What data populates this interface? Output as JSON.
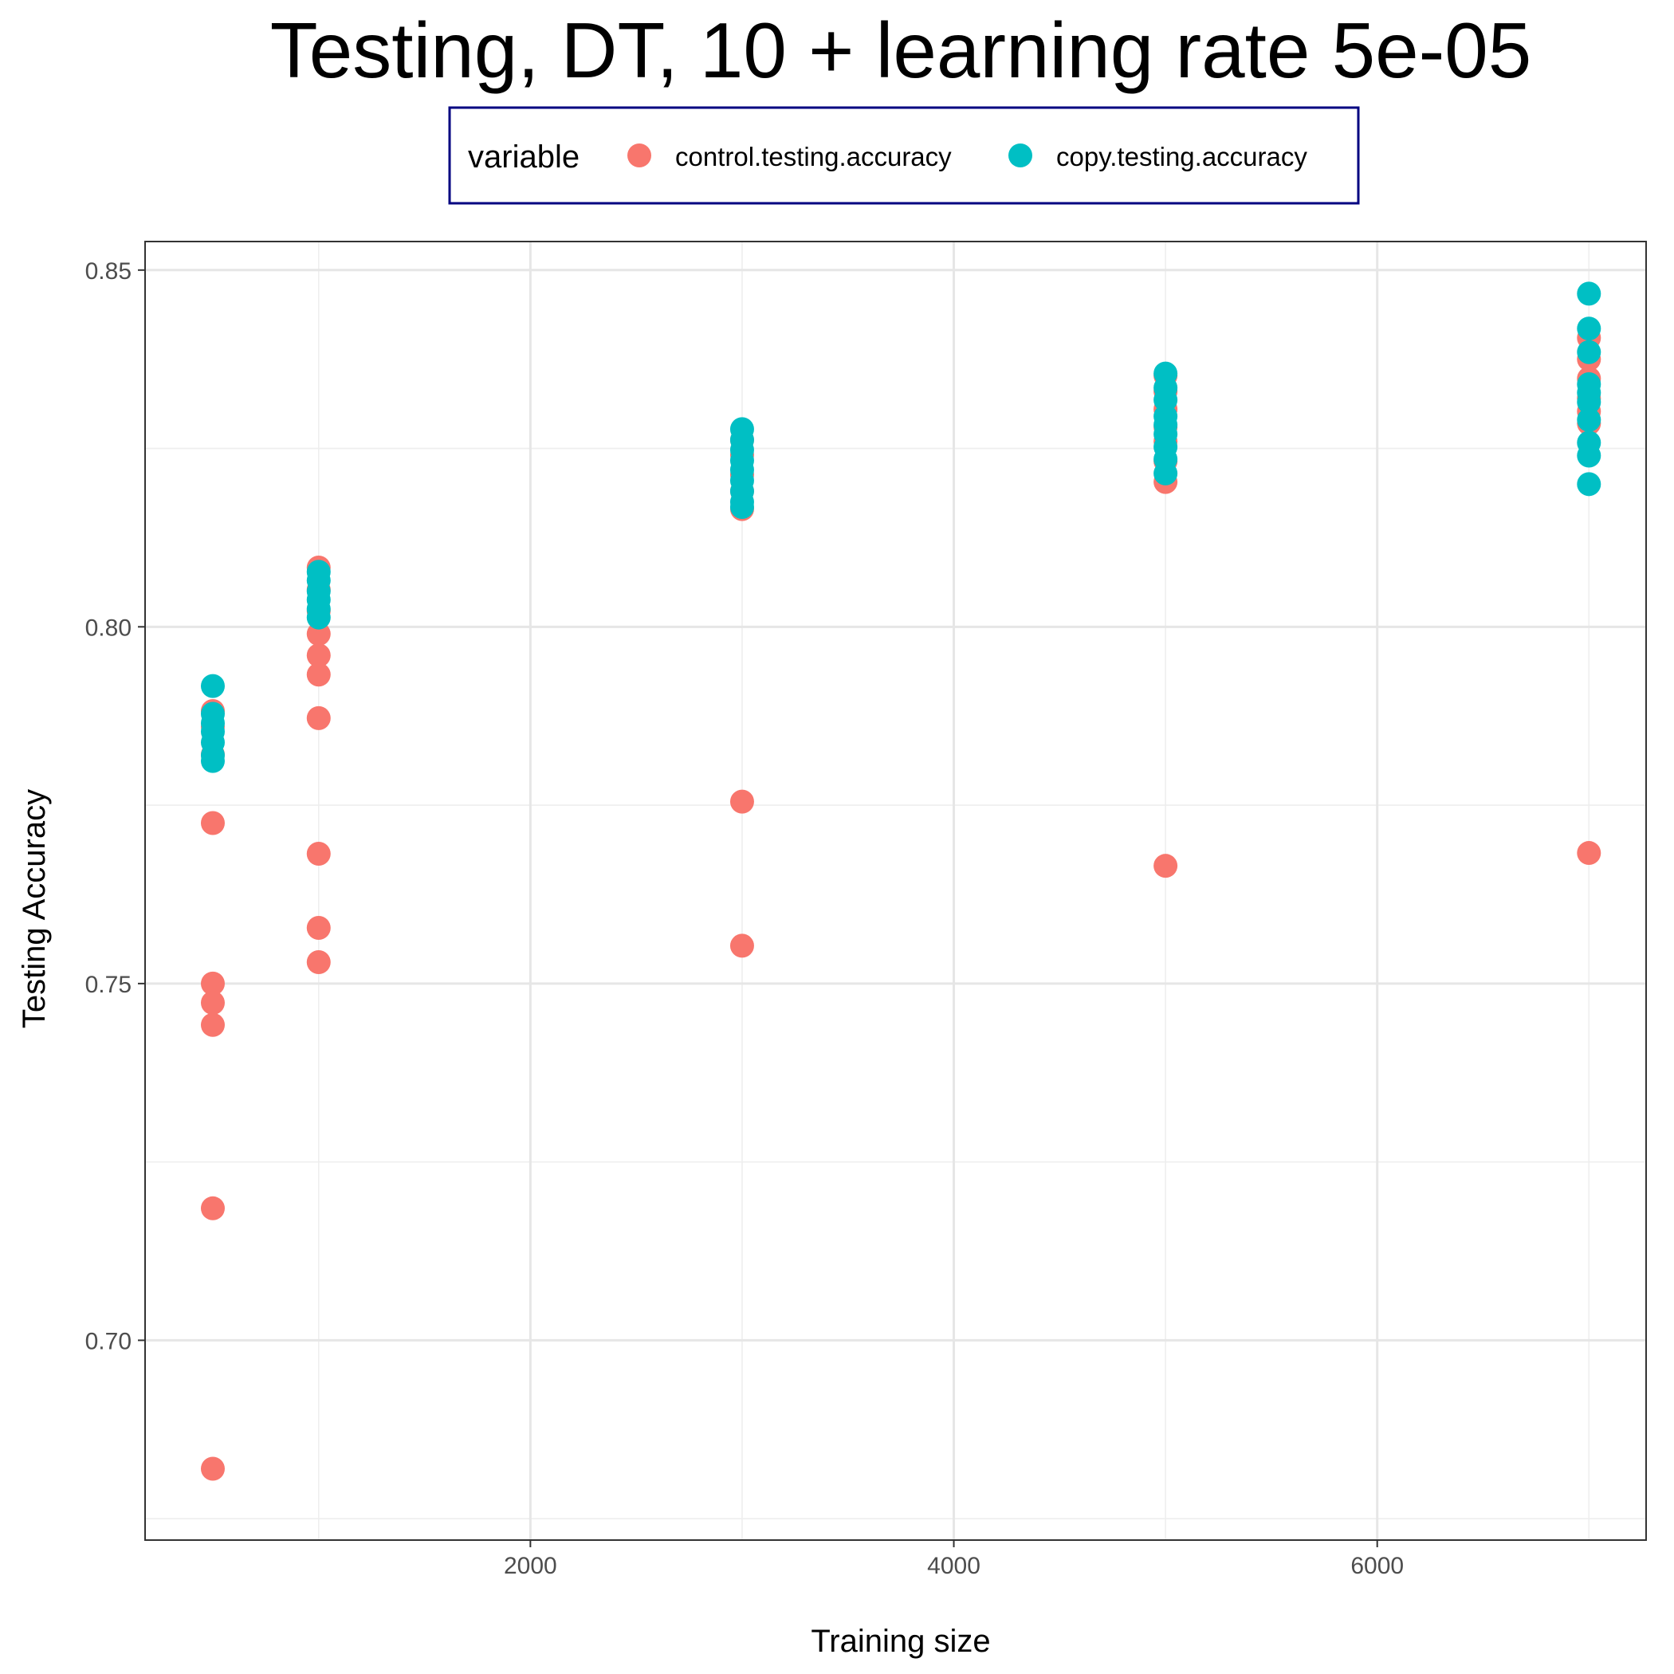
{
  "chart_data": {
    "type": "scatter",
    "title": "Testing, DT, 10 + learning rate 5e-05",
    "xlabel": "Training size",
    "ylabel": "Testing Accuracy",
    "xlim": [
      180,
      7270
    ],
    "ylim": [
      0.672,
      0.854
    ],
    "x_ticks": [
      2000,
      4000,
      6000
    ],
    "x_tick_labels": [
      "2000",
      "4000",
      "6000"
    ],
    "y_ticks": [
      0.7,
      0.75,
      0.8,
      0.85
    ],
    "y_tick_labels": [
      "0.70",
      "0.75",
      "0.80",
      "0.85"
    ],
    "grid": true,
    "legend": {
      "title": "variable",
      "position": "top",
      "border_color": "#000080"
    },
    "series": [
      {
        "name": "control.testing.accuracy",
        "color": "#F8766D",
        "points": [
          {
            "x": 500,
            "y": 0.7882
          },
          {
            "x": 500,
            "y": 0.786
          },
          {
            "x": 500,
            "y": 0.7821
          },
          {
            "x": 500,
            "y": 0.7725
          },
          {
            "x": 500,
            "y": 0.75
          },
          {
            "x": 500,
            "y": 0.7473
          },
          {
            "x": 500,
            "y": 0.7442
          },
          {
            "x": 500,
            "y": 0.7185
          },
          {
            "x": 500,
            "y": 0.682
          },
          {
            "x": 1000,
            "y": 0.8083
          },
          {
            "x": 1000,
            "y": 0.8052
          },
          {
            "x": 1000,
            "y": 0.8022
          },
          {
            "x": 1000,
            "y": 0.799
          },
          {
            "x": 1000,
            "y": 0.796
          },
          {
            "x": 1000,
            "y": 0.7933
          },
          {
            "x": 1000,
            "y": 0.7872
          },
          {
            "x": 1000,
            "y": 0.7682
          },
          {
            "x": 1000,
            "y": 0.7578
          },
          {
            "x": 1000,
            "y": 0.753
          },
          {
            "x": 3000,
            "y": 0.8262
          },
          {
            "x": 3000,
            "y": 0.8241
          },
          {
            "x": 3000,
            "y": 0.8213
          },
          {
            "x": 3000,
            "y": 0.819
          },
          {
            "x": 3000,
            "y": 0.8165
          },
          {
            "x": 3000,
            "y": 0.7755
          },
          {
            "x": 3000,
            "y": 0.7553
          },
          {
            "x": 5000,
            "y": 0.8352
          },
          {
            "x": 5000,
            "y": 0.833
          },
          {
            "x": 5000,
            "y": 0.8305
          },
          {
            "x": 5000,
            "y": 0.828
          },
          {
            "x": 5000,
            "y": 0.826
          },
          {
            "x": 5000,
            "y": 0.8232
          },
          {
            "x": 5000,
            "y": 0.8203
          },
          {
            "x": 5000,
            "y": 0.7665
          },
          {
            "x": 7000,
            "y": 0.8405
          },
          {
            "x": 7000,
            "y": 0.8375
          },
          {
            "x": 7000,
            "y": 0.8348
          },
          {
            "x": 7000,
            "y": 0.832
          },
          {
            "x": 7000,
            "y": 0.8302
          },
          {
            "x": 7000,
            "y": 0.8285
          },
          {
            "x": 7000,
            "y": 0.7683
          }
        ]
      },
      {
        "name": "copy.testing.accuracy",
        "color": "#00BFC4",
        "points": [
          {
            "x": 500,
            "y": 0.7917
          },
          {
            "x": 500,
            "y": 0.7878
          },
          {
            "x": 500,
            "y": 0.7865
          },
          {
            "x": 500,
            "y": 0.7853
          },
          {
            "x": 500,
            "y": 0.7838
          },
          {
            "x": 500,
            "y": 0.782
          },
          {
            "x": 500,
            "y": 0.7812
          },
          {
            "x": 1000,
            "y": 0.8077
          },
          {
            "x": 1000,
            "y": 0.8065
          },
          {
            "x": 1000,
            "y": 0.805
          },
          {
            "x": 1000,
            "y": 0.8038
          },
          {
            "x": 1000,
            "y": 0.8025
          },
          {
            "x": 1000,
            "y": 0.8013
          },
          {
            "x": 3000,
            "y": 0.8277
          },
          {
            "x": 3000,
            "y": 0.8262
          },
          {
            "x": 3000,
            "y": 0.8248
          },
          {
            "x": 3000,
            "y": 0.8233
          },
          {
            "x": 3000,
            "y": 0.822
          },
          {
            "x": 3000,
            "y": 0.8205
          },
          {
            "x": 3000,
            "y": 0.819
          },
          {
            "x": 3000,
            "y": 0.8175
          },
          {
            "x": 3000,
            "y": 0.8168
          },
          {
            "x": 5000,
            "y": 0.8355
          },
          {
            "x": 5000,
            "y": 0.8335
          },
          {
            "x": 5000,
            "y": 0.8318
          },
          {
            "x": 5000,
            "y": 0.8295
          },
          {
            "x": 5000,
            "y": 0.8283
          },
          {
            "x": 5000,
            "y": 0.827
          },
          {
            "x": 5000,
            "y": 0.8252
          },
          {
            "x": 5000,
            "y": 0.8235
          },
          {
            "x": 5000,
            "y": 0.8215
          },
          {
            "x": 7000,
            "y": 0.8467
          },
          {
            "x": 7000,
            "y": 0.8418
          },
          {
            "x": 7000,
            "y": 0.8385
          },
          {
            "x": 7000,
            "y": 0.834
          },
          {
            "x": 7000,
            "y": 0.8328
          },
          {
            "x": 7000,
            "y": 0.8315
          },
          {
            "x": 7000,
            "y": 0.829
          },
          {
            "x": 7000,
            "y": 0.8258
          },
          {
            "x": 7000,
            "y": 0.824
          },
          {
            "x": 7000,
            "y": 0.82
          }
        ]
      }
    ]
  }
}
